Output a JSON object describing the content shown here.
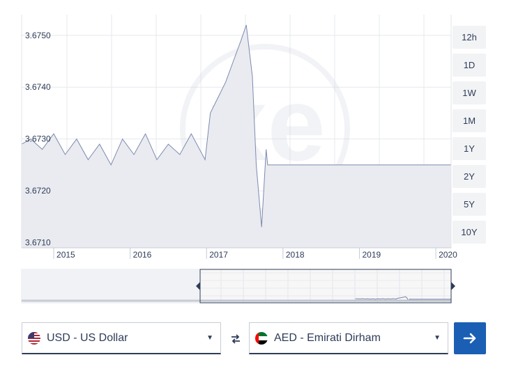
{
  "chart_data": {
    "type": "line",
    "title": "",
    "xlabel": "",
    "ylabel": "",
    "y_ticks": [
      3.671,
      3.672,
      3.673,
      3.674,
      3.675
    ],
    "y_tick_labels": [
      "3.6710",
      "3.6720",
      "3.6730",
      "3.6740",
      "3.6750"
    ],
    "ylim": [
      3.6709,
      3.6754
    ],
    "x_ticks": [
      2015,
      2016,
      2017,
      2018,
      2019,
      2020
    ],
    "x_tick_labels": [
      "2015",
      "2016",
      "2017",
      "2018",
      "2019",
      "2020"
    ],
    "xlim": [
      2014.58,
      2020.2
    ],
    "grid": true,
    "series": [
      {
        "name": "",
        "x": [
          2014.58,
          2014.7,
          2014.85,
          2015.0,
          2015.15,
          2015.3,
          2015.45,
          2015.6,
          2015.75,
          2015.9,
          2016.05,
          2016.2,
          2016.35,
          2016.5,
          2016.65,
          2016.8,
          2016.98,
          2017.05,
          2017.15,
          2017.25,
          2017.35,
          2017.45,
          2017.52,
          2017.6,
          2017.65,
          2017.72,
          2017.78,
          2017.8,
          2018.5,
          2019.5,
          2020.2
        ],
        "y": [
          3.6729,
          3.673,
          3.6728,
          3.6731,
          3.6727,
          3.673,
          3.6726,
          3.6729,
          3.6725,
          3.673,
          3.6727,
          3.6731,
          3.6726,
          3.6729,
          3.6727,
          3.6731,
          3.6726,
          3.6735,
          3.6738,
          3.6741,
          3.6745,
          3.6749,
          3.6752,
          3.6742,
          3.6725,
          3.6713,
          3.6728,
          3.6725,
          3.6725,
          3.6725,
          3.6725
        ]
      }
    ],
    "navigator": {
      "xlim": [
        1995,
        2020.2
      ],
      "selected_range": [
        2014.58,
        2020.2
      ]
    }
  },
  "watermark": "xe",
  "ranges": [
    "12h",
    "1D",
    "1W",
    "1M",
    "1Y",
    "2Y",
    "5Y",
    "10Y"
  ],
  "from_currency": {
    "label": "USD - US Dollar",
    "flag": "us-flag-icon"
  },
  "to_currency": {
    "label": "AED - Emirati Dirham",
    "flag": "ae-flag-icon"
  },
  "colors": {
    "line": "#7d8aaf",
    "fill": "#e9ebf0",
    "accent": "#1a5fb4",
    "text": "#2e3c57"
  }
}
